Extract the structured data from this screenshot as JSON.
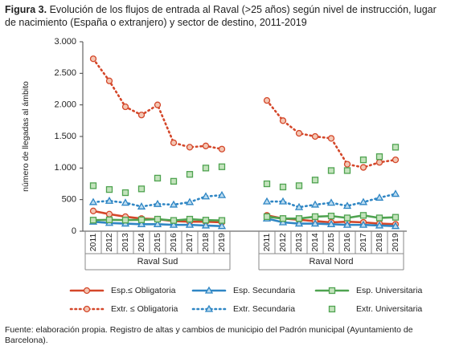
{
  "chart_data": {
    "type": "line",
    "title_label": "Figura 3.",
    "title": "Evolución de los flujos de entrada al Raval (>25 años) según nivel de instrucción, lugar de nacimiento (España o extranjero) y sector de destino, 2011-2019",
    "y_label": "número de llegadas al ámbito",
    "source": "Fuente: elaboración propia. Registro de altas y cambios de municipio del Padrón municipal (Ayuntamiento de Barcelona).",
    "ylim": [
      0,
      3000
    ],
    "yticks": [
      0,
      500,
      {
        "value": 1000,
        "label": "1.000"
      },
      {
        "value": 1500,
        "label": "1.500"
      },
      {
        "value": 2000,
        "label": "2.000"
      },
      {
        "value": 2500,
        "label": "2.500"
      },
      {
        "value": 3000,
        "label": "3.000"
      }
    ],
    "grid": false,
    "groups": [
      {
        "name": "Raval Sud",
        "categories": [
          "2011",
          "2012",
          "2013",
          "2014",
          "2015",
          "2016",
          "2017",
          "2018",
          "2019"
        ]
      },
      {
        "name": "Raval Nord",
        "categories": [
          "2011",
          "2012",
          "2013",
          "2014",
          "2015",
          "2016",
          "2017",
          "2018",
          "2019"
        ]
      }
    ],
    "series": [
      {
        "name": "Esp.≤ Obligatoria",
        "color": "#d4472a",
        "marker_fill": "#f3c7b4",
        "line_style": "solid",
        "marker": "circle",
        "values": [
          [
            320,
            270,
            230,
            200,
            190,
            160,
            150,
            150,
            140
          ],
          [
            250,
            200,
            180,
            160,
            140,
            150,
            140,
            120,
            110
          ]
        ]
      },
      {
        "name": "Esp. Secundaria",
        "color": "#2f86c4",
        "marker_fill": "#bcdcf0",
        "line_style": "solid",
        "marker": "triangle",
        "values": [
          [
            150,
            130,
            120,
            110,
            110,
            100,
            100,
            90,
            80
          ],
          [
            200,
            140,
            120,
            120,
            110,
            100,
            100,
            90,
            80
          ]
        ]
      },
      {
        "name": "Esp. Universitaria",
        "color": "#4fa350",
        "marker_fill": "#c4e3bd",
        "line_style": "solid",
        "marker": "square",
        "values": [
          [
            175,
            180,
            175,
            180,
            190,
            170,
            190,
            175,
            170
          ],
          [
            230,
            200,
            200,
            230,
            240,
            210,
            250,
            210,
            220
          ]
        ]
      },
      {
        "name": "Extr. ≤ Obligatoria",
        "color": "#d4472a",
        "marker_fill": "#f3c7b4",
        "line_style": "dotted",
        "marker": "circle",
        "values": [
          [
            2730,
            2380,
            1970,
            1840,
            2000,
            1400,
            1330,
            1350,
            1300
          ],
          [
            2070,
            1750,
            1550,
            1500,
            1470,
            1060,
            1010,
            1090,
            1130
          ]
        ]
      },
      {
        "name": "Extr. Secundaria",
        "color": "#2f86c4",
        "marker_fill": "#bcdcf0",
        "line_style": "dotted",
        "marker": "triangle",
        "values": [
          [
            460,
            480,
            450,
            390,
            430,
            420,
            460,
            550,
            570
          ],
          [
            470,
            470,
            380,
            420,
            450,
            400,
            460,
            530,
            590
          ]
        ]
      },
      {
        "name": "Extr. Universitaria",
        "color": "#4fa350",
        "marker_fill": "#c4e3bd",
        "line_style": "none",
        "marker": "square",
        "values": [
          [
            720,
            660,
            610,
            670,
            840,
            790,
            900,
            1000,
            1020
          ],
          [
            750,
            700,
            720,
            810,
            960,
            960,
            1130,
            1180,
            1330
          ]
        ]
      }
    ]
  }
}
